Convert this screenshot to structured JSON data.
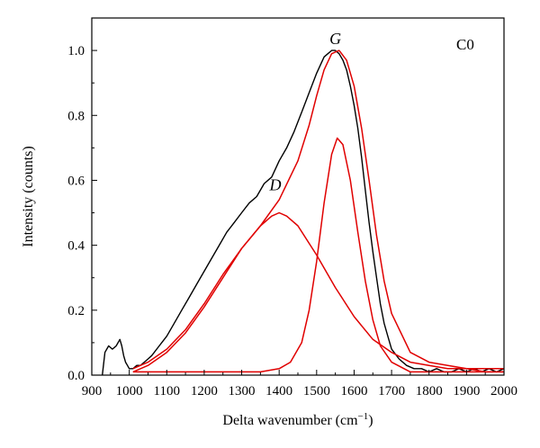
{
  "chart_data": {
    "type": "line",
    "title": "",
    "panel_label": "C0",
    "xlabel": "Delta wavenumber (cm",
    "xlabel_superscript": "−1",
    "xlabel_suffix": ")",
    "ylabel": "Intensity (counts)",
    "xlim": [
      900,
      2000
    ],
    "ylim": [
      0,
      1.1
    ],
    "x_ticks": [
      900,
      1000,
      1100,
      1200,
      1300,
      1400,
      1500,
      1600,
      1700,
      1800,
      1900,
      2000
    ],
    "y_ticks": [
      0.0,
      0.2,
      0.4,
      0.6,
      0.8,
      1.0
    ],
    "y_tick_labels": [
      "0.0",
      "0.2",
      "0.4",
      "0.6",
      "0.8",
      "1.0"
    ],
    "annotations": [
      {
        "text": "D",
        "x": 1390,
        "y": 0.57
      },
      {
        "text": "G",
        "x": 1550,
        "y": 1.02
      }
    ],
    "colors": {
      "measured": "#000000",
      "fit": "#e00000"
    },
    "series": [
      {
        "name": "",
        "color": "#000000",
        "x": [
          928,
          935,
          945,
          955,
          965,
          975,
          980,
          985,
          990,
          995,
          1000,
          1010,
          1020,
          1030,
          1040,
          1050,
          1060,
          1080,
          1100,
          1120,
          1140,
          1160,
          1180,
          1200,
          1220,
          1240,
          1260,
          1280,
          1300,
          1320,
          1340,
          1360,
          1380,
          1400,
          1420,
          1440,
          1460,
          1480,
          1500,
          1520,
          1530,
          1540,
          1550,
          1560,
          1570,
          1580,
          1590,
          1600,
          1610,
          1620,
          1630,
          1640,
          1650,
          1660,
          1670,
          1680,
          1690,
          1700,
          1720,
          1740,
          1760,
          1780,
          1800,
          1820,
          1840,
          1860,
          1880,
          1900,
          1920,
          1940,
          1960,
          1980,
          2000
        ],
        "y": [
          0.0,
          0.07,
          0.09,
          0.08,
          0.09,
          0.11,
          0.09,
          0.06,
          0.04,
          0.03,
          0.02,
          0.02,
          0.03,
          0.03,
          0.04,
          0.05,
          0.06,
          0.09,
          0.12,
          0.16,
          0.2,
          0.24,
          0.28,
          0.32,
          0.36,
          0.4,
          0.44,
          0.47,
          0.5,
          0.53,
          0.55,
          0.59,
          0.61,
          0.66,
          0.7,
          0.75,
          0.81,
          0.87,
          0.93,
          0.98,
          0.99,
          1.0,
          1.0,
          0.99,
          0.97,
          0.94,
          0.89,
          0.83,
          0.76,
          0.67,
          0.57,
          0.47,
          0.38,
          0.3,
          0.22,
          0.16,
          0.12,
          0.08,
          0.05,
          0.03,
          0.02,
          0.02,
          0.01,
          0.02,
          0.01,
          0.01,
          0.02,
          0.01,
          0.02,
          0.01,
          0.02,
          0.01,
          0.02
        ]
      },
      {
        "name": "",
        "color": "#e00000",
        "x": [
          1010,
          1050,
          1100,
          1150,
          1200,
          1250,
          1300,
          1350,
          1400,
          1450,
          1480,
          1500,
          1520,
          1540,
          1560,
          1580,
          1600,
          1620,
          1640,
          1660,
          1680,
          1700,
          1750,
          1800,
          1850,
          1900,
          1950,
          2000
        ],
        "y": [
          0.02,
          0.04,
          0.08,
          0.14,
          0.22,
          0.31,
          0.39,
          0.46,
          0.54,
          0.66,
          0.77,
          0.86,
          0.94,
          0.99,
          1.0,
          0.97,
          0.89,
          0.76,
          0.6,
          0.43,
          0.29,
          0.19,
          0.07,
          0.04,
          0.03,
          0.02,
          0.02,
          0.02
        ]
      },
      {
        "name": "",
        "color": "#e00000",
        "x": [
          1010,
          1050,
          1100,
          1150,
          1200,
          1250,
          1300,
          1350,
          1380,
          1400,
          1420,
          1450,
          1500,
          1550,
          1600,
          1650,
          1700,
          1750,
          1800,
          1850,
          1900,
          1950,
          2000
        ],
        "y": [
          0.01,
          0.03,
          0.07,
          0.13,
          0.21,
          0.3,
          0.39,
          0.46,
          0.49,
          0.5,
          0.49,
          0.46,
          0.37,
          0.27,
          0.18,
          0.11,
          0.07,
          0.04,
          0.03,
          0.02,
          0.02,
          0.01,
          0.01
        ]
      },
      {
        "name": "",
        "color": "#e00000",
        "x": [
          1010,
          1100,
          1200,
          1300,
          1350,
          1400,
          1430,
          1460,
          1480,
          1500,
          1520,
          1540,
          1555,
          1570,
          1590,
          1610,
          1630,
          1650,
          1670,
          1700,
          1750,
          1800,
          1900,
          2000
        ],
        "y": [
          0.01,
          0.01,
          0.01,
          0.01,
          0.01,
          0.02,
          0.04,
          0.1,
          0.2,
          0.35,
          0.53,
          0.68,
          0.73,
          0.71,
          0.6,
          0.44,
          0.29,
          0.17,
          0.09,
          0.04,
          0.01,
          0.01,
          0.01,
          0.01
        ]
      }
    ]
  }
}
